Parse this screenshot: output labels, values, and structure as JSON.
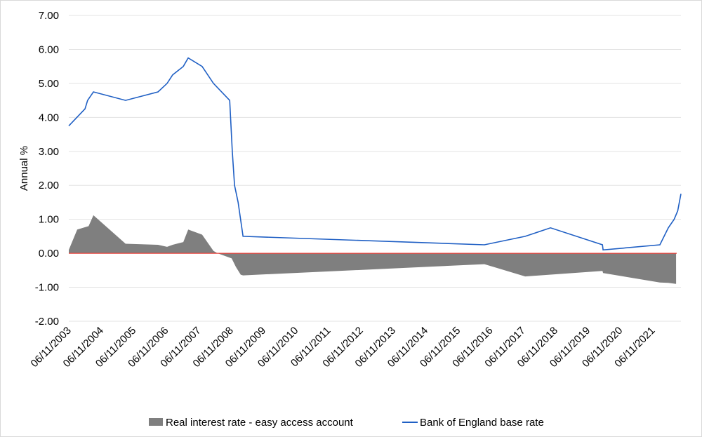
{
  "chart_data": {
    "type": "area+line",
    "ylabel": "Annual %",
    "ylim": [
      -2,
      7
    ],
    "y_ticks": [
      "-2.00",
      "-1.00",
      "0.00",
      "1.00",
      "2.00",
      "3.00",
      "4.00",
      "5.00",
      "6.00",
      "7.00"
    ],
    "x_range": [
      2003.85,
      2022.72
    ],
    "x_ticks": [
      "06/11/2003",
      "06/11/2004",
      "06/11/2005",
      "06/11/2006",
      "06/11/2007",
      "06/11/2008",
      "06/11/2009",
      "06/11/2010",
      "06/11/2011",
      "06/11/2012",
      "06/11/2013",
      "06/11/2014",
      "06/11/2015",
      "06/11/2016",
      "06/11/2017",
      "06/11/2018",
      "06/11/2019",
      "06/11/2020",
      "06/11/2021"
    ],
    "grid": true,
    "legend_position": "bottom",
    "colors": {
      "area": "#7f7f7f",
      "line": "#1f5fc4",
      "zero_line": "#e8403a",
      "grid": "#e3e3e3"
    },
    "series": [
      {
        "name": "Real interest rate - easy access account",
        "kind": "area",
        "points": [
          [
            2003.85,
            0.1
          ],
          [
            2004.11,
            0.7
          ],
          [
            2004.46,
            0.8
          ],
          [
            2004.61,
            1.12
          ],
          [
            2005.6,
            0.28
          ],
          [
            2006.6,
            0.25
          ],
          [
            2006.88,
            0.19
          ],
          [
            2007.05,
            0.25
          ],
          [
            2007.38,
            0.33
          ],
          [
            2007.53,
            0.7
          ],
          [
            2007.96,
            0.55
          ],
          [
            2008.31,
            0.07
          ],
          [
            2008.44,
            0.0
          ],
          [
            2008.87,
            -0.15
          ],
          [
            2009.0,
            -0.4
          ],
          [
            2009.15,
            -0.63
          ],
          [
            2009.22,
            -0.65
          ],
          [
            2016.66,
            -0.32
          ],
          [
            2017.92,
            -0.68
          ],
          [
            2020.3,
            -0.52
          ],
          [
            2020.32,
            -0.58
          ],
          [
            2022.07,
            -0.86
          ],
          [
            2022.33,
            -0.87
          ],
          [
            2022.57,
            -0.9
          ]
        ]
      },
      {
        "name": "Bank of England base rate",
        "kind": "line",
        "points": [
          [
            2003.85,
            3.75
          ],
          [
            2004.35,
            4.25
          ],
          [
            2004.43,
            4.5
          ],
          [
            2004.61,
            4.75
          ],
          [
            2005.6,
            4.5
          ],
          [
            2006.6,
            4.75
          ],
          [
            2006.88,
            5.0
          ],
          [
            2007.05,
            5.25
          ],
          [
            2007.38,
            5.5
          ],
          [
            2007.53,
            5.75
          ],
          [
            2007.96,
            5.5
          ],
          [
            2008.31,
            5.0
          ],
          [
            2008.81,
            4.5
          ],
          [
            2008.89,
            3.0
          ],
          [
            2008.96,
            2.0
          ],
          [
            2009.07,
            1.5
          ],
          [
            2009.22,
            0.5
          ],
          [
            2016.66,
            0.25
          ],
          [
            2017.92,
            0.5
          ],
          [
            2018.7,
            0.75
          ],
          [
            2020.3,
            0.25
          ],
          [
            2020.32,
            0.1
          ],
          [
            2022.07,
            0.25
          ],
          [
            2022.2,
            0.5
          ],
          [
            2022.33,
            0.75
          ],
          [
            2022.51,
            1.0
          ],
          [
            2022.62,
            1.25
          ],
          [
            2022.72,
            1.75
          ]
        ]
      }
    ]
  }
}
